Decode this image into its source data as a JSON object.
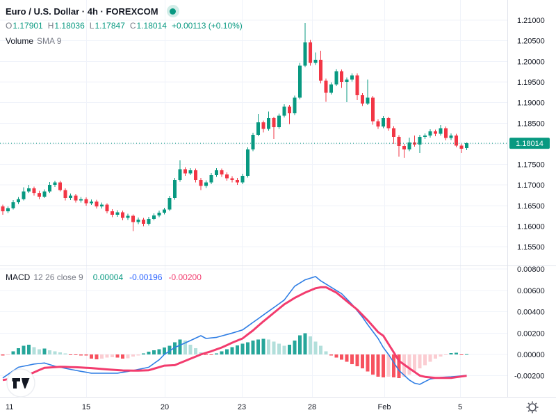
{
  "title": {
    "display": "Euro / U.S. Dollar · 4h · FOREXCOM",
    "symbol": "Euro / U.S. Dollar",
    "interval": "4h",
    "exchange": "FOREXCOM"
  },
  "ohlc_row": {
    "o_label": "O",
    "o_value": "1.17901",
    "h_label": "H",
    "h_value": "1.18036",
    "l_label": "L",
    "l_value": "1.17847",
    "c_label": "C",
    "c_value": "1.18014",
    "change": "+0.00113 (+0.10%)"
  },
  "volume_row": {
    "label": "Volume",
    "ma_label": "SMA 9"
  },
  "macd_row": {
    "label": "MACD",
    "params": "12 26 close 9",
    "hist_value": "0.00004",
    "macd_value": "-0.00196",
    "signal_value": "-0.00200"
  },
  "price_axis": {
    "ticks": [
      "1.21000",
      "1.20500",
      "1.20000",
      "1.19500",
      "1.19000",
      "1.18500",
      "1.17500",
      "1.17000",
      "1.16500",
      "1.16000",
      "1.15500"
    ],
    "last_price": "1.18014"
  },
  "macd_axis": {
    "ticks": [
      "0.00800",
      "0.00600",
      "0.00400",
      "0.00200",
      "0.00000",
      "-0.00200"
    ]
  },
  "time_axis": {
    "labels": [
      "11",
      "15",
      "20",
      "23",
      "28",
      "Feb",
      "5"
    ]
  },
  "colors": {
    "up": "#089981",
    "down": "#f23645",
    "accent": "#089981",
    "macd_line": "#2e7de4",
    "signal_line": "#f23c6e",
    "hist_grow_above": "#26a69a",
    "hist_fall_above": "#b2dfdb",
    "hist_fall_below": "#f7525f",
    "hist_grow_below": "#fbcdd2",
    "text_dark": "#131722",
    "text_gray": "#787b86",
    "grid": "#f0f3fa",
    "separator": "#e0e3eb"
  },
  "chart_data": {
    "type": "candlestick",
    "title": "Euro / U.S. Dollar 4h FOREXCOM",
    "price_axis_range": [
      1.1508,
      1.2149
    ],
    "price_tick_step": 0.005,
    "last_price": 1.18014,
    "candles_ohlc": [
      [
        1.1648,
        1.1652,
        1.1628,
        1.1636
      ],
      [
        1.1636,
        1.1648,
        1.1632,
        1.1644
      ],
      [
        1.1644,
        1.1663,
        1.164,
        1.1658
      ],
      [
        1.1658,
        1.1671,
        1.1654,
        1.1666
      ],
      [
        1.1666,
        1.1694,
        1.1662,
        1.1684
      ],
      [
        1.1684,
        1.17,
        1.168,
        1.1692
      ],
      [
        1.1692,
        1.1696,
        1.1674,
        1.168
      ],
      [
        1.168,
        1.1686,
        1.1666,
        1.1672
      ],
      [
        1.1672,
        1.1689,
        1.1668,
        1.1684
      ],
      [
        1.1684,
        1.1707,
        1.168,
        1.17
      ],
      [
        1.17,
        1.171,
        1.1695,
        1.1706
      ],
      [
        1.1706,
        1.171,
        1.1684,
        1.1688
      ],
      [
        1.1688,
        1.1692,
        1.1662,
        1.1668
      ],
      [
        1.1668,
        1.1679,
        1.1663,
        1.1674
      ],
      [
        1.1674,
        1.1678,
        1.1657,
        1.1662
      ],
      [
        1.1662,
        1.1671,
        1.1657,
        1.1666
      ],
      [
        1.1666,
        1.167,
        1.165,
        1.1656
      ],
      [
        1.1656,
        1.1665,
        1.1651,
        1.166
      ],
      [
        1.166,
        1.1664,
        1.1643,
        1.1648
      ],
      [
        1.1648,
        1.1657,
        1.1643,
        1.1652
      ],
      [
        1.1652,
        1.1656,
        1.1631,
        1.1636
      ],
      [
        1.1636,
        1.1641,
        1.1622,
        1.1628
      ],
      [
        1.1628,
        1.1639,
        1.1623,
        1.1634
      ],
      [
        1.1634,
        1.1638,
        1.1614,
        1.162
      ],
      [
        1.162,
        1.163,
        1.1615,
        1.1625
      ],
      [
        1.1625,
        1.1629,
        1.1588,
        1.161
      ],
      [
        1.161,
        1.1621,
        1.1605,
        1.1616
      ],
      [
        1.1616,
        1.162,
        1.16,
        1.1606
      ],
      [
        1.1606,
        1.1623,
        1.1602,
        1.1618
      ],
      [
        1.1618,
        1.1631,
        1.1614,
        1.1626
      ],
      [
        1.1626,
        1.1638,
        1.1622,
        1.1633
      ],
      [
        1.1633,
        1.1645,
        1.1629,
        1.164
      ],
      [
        1.164,
        1.1673,
        1.1637,
        1.1668
      ],
      [
        1.1668,
        1.1717,
        1.1664,
        1.1712
      ],
      [
        1.1712,
        1.176,
        1.1708,
        1.1738
      ],
      [
        1.1738,
        1.1743,
        1.1722,
        1.1728
      ],
      [
        1.1728,
        1.1741,
        1.1724,
        1.1736
      ],
      [
        1.1736,
        1.174,
        1.1706,
        1.1712
      ],
      [
        1.1712,
        1.1717,
        1.1688,
        1.1698
      ],
      [
        1.1698,
        1.1711,
        1.1693,
        1.1706
      ],
      [
        1.1706,
        1.1729,
        1.1702,
        1.1724
      ],
      [
        1.1724,
        1.1741,
        1.172,
        1.1736
      ],
      [
        1.1736,
        1.174,
        1.172,
        1.1726
      ],
      [
        1.1726,
        1.1731,
        1.171,
        1.1716
      ],
      [
        1.1716,
        1.1721,
        1.1706,
        1.1712
      ],
      [
        1.1712,
        1.1717,
        1.17,
        1.1706
      ],
      [
        1.1706,
        1.1727,
        1.1702,
        1.1722
      ],
      [
        1.1722,
        1.1791,
        1.1718,
        1.1786
      ],
      [
        1.1786,
        1.1827,
        1.1782,
        1.1822
      ],
      [
        1.1822,
        1.1872,
        1.1818,
        1.1852
      ],
      [
        1.1852,
        1.1856,
        1.1828,
        1.1836
      ],
      [
        1.1836,
        1.1878,
        1.1832,
        1.1862
      ],
      [
        1.1862,
        1.1866,
        1.1812,
        1.184
      ],
      [
        1.184,
        1.1873,
        1.1836,
        1.1868
      ],
      [
        1.1868,
        1.1896,
        1.1864,
        1.189
      ],
      [
        1.189,
        1.1894,
        1.1848,
        1.1874
      ],
      [
        1.1874,
        1.1917,
        1.187,
        1.1912
      ],
      [
        1.1912,
        1.1996,
        1.1908,
        1.199
      ],
      [
        1.199,
        1.2093,
        1.1986,
        1.2046
      ],
      [
        1.2046,
        1.2052,
        1.199,
        1.1996
      ],
      [
        1.1996,
        1.2022,
        1.1991,
        1.2004
      ],
      [
        1.2004,
        1.2026,
        1.1947,
        1.1953
      ],
      [
        1.1953,
        1.1958,
        1.1902,
        1.1924
      ],
      [
        1.1924,
        1.1949,
        1.192,
        1.1944
      ],
      [
        1.1944,
        1.1981,
        1.194,
        1.1976
      ],
      [
        1.1976,
        1.198,
        1.1936,
        1.195
      ],
      [
        1.195,
        1.1961,
        1.1901,
        1.1956
      ],
      [
        1.1956,
        1.1971,
        1.1951,
        1.1966
      ],
      [
        1.1966,
        1.1971,
        1.1906,
        1.1918
      ],
      [
        1.1918,
        1.1923,
        1.1892,
        1.1898
      ],
      [
        1.1898,
        1.1956,
        1.1894,
        1.1912
      ],
      [
        1.1912,
        1.1916,
        1.1846,
        1.1855
      ],
      [
        1.1855,
        1.186,
        1.1836,
        1.1842
      ],
      [
        1.1842,
        1.1867,
        1.1838,
        1.1862
      ],
      [
        1.1862,
        1.1866,
        1.1832,
        1.1838
      ],
      [
        1.1838,
        1.1843,
        1.18,
        1.1817
      ],
      [
        1.1817,
        1.1821,
        1.1769,
        1.1795
      ],
      [
        1.1795,
        1.18,
        1.1766,
        1.1786
      ],
      [
        1.1786,
        1.1815,
        1.1782,
        1.1803
      ],
      [
        1.1803,
        1.182,
        1.1793,
        1.1798
      ],
      [
        1.1798,
        1.1822,
        1.1778,
        1.1817
      ],
      [
        1.1817,
        1.1825,
        1.1812,
        1.182
      ],
      [
        1.182,
        1.1835,
        1.1815,
        1.183
      ],
      [
        1.183,
        1.1834,
        1.1818,
        1.1824
      ],
      [
        1.1824,
        1.1845,
        1.182,
        1.1838
      ],
      [
        1.1838,
        1.1842,
        1.1808,
        1.1814
      ],
      [
        1.1814,
        1.1825,
        1.1809,
        1.182
      ],
      [
        1.182,
        1.1824,
        1.1791,
        1.1796
      ],
      [
        1.1796,
        1.18,
        1.1778,
        1.1788
      ],
      [
        1.17901,
        1.18036,
        1.17847,
        1.18014
      ]
    ],
    "indicators": {
      "macd_12_26_close_9": {
        "value_axis_range": [
          -0.0039,
          0.00814
        ],
        "histogram": [
          -0.0001,
          -5e-05,
          0.0003,
          0.0006,
          0.0008,
          0.0009,
          0.0007,
          0.0005,
          0.00055,
          0.0004,
          0.0003,
          0.0002,
          0.0001,
          -5e-05,
          -8e-05,
          -0.0001,
          -0.0001,
          -0.0004,
          -0.00045,
          -0.0004,
          -0.0003,
          -0.00025,
          -0.0003,
          -0.0004,
          -0.00035,
          -0.0002,
          -0.0001,
          0.0001,
          0.00025,
          0.0004,
          0.0005,
          0.00065,
          0.0008,
          0.00115,
          0.0014,
          0.0013,
          0.0009,
          0.0006,
          0.0002,
          -5e-05,
          -8e-05,
          0.0001,
          0.0003,
          0.0005,
          0.0007,
          0.00085,
          0.001,
          0.00115,
          0.0013,
          0.0014,
          0.00145,
          0.0014,
          0.0012,
          0.001,
          0.0008,
          0.0009,
          0.0013,
          0.0018,
          0.002,
          0.0017,
          0.0012,
          0.0008,
          0.0003,
          -0.0001,
          -0.0003,
          -0.0005,
          -0.0007,
          -0.0009,
          -0.0011,
          -0.0013,
          -0.0016,
          -0.0019,
          -0.0021,
          -0.00215,
          -0.0021,
          -0.00215,
          -0.0022,
          -0.0021,
          -0.0019,
          -0.0016,
          -0.0013,
          -0.001,
          -0.0007,
          -0.0004,
          -0.0002,
          -8e-05,
          0.00012,
          0.00015,
          -5e-05,
          4e-05
        ],
        "macd_line_points": [
          [
            0,
            -0.0022
          ],
          [
            3,
            -0.0012
          ],
          [
            6,
            -0.0009
          ],
          [
            8,
            -0.0008
          ],
          [
            10,
            -0.0011
          ],
          [
            13,
            -0.0014
          ],
          [
            17,
            -0.00176
          ],
          [
            22,
            -0.00176
          ],
          [
            25,
            -0.0015
          ],
          [
            28,
            -0.0012
          ],
          [
            30,
            -0.0005
          ],
          [
            31,
            0
          ],
          [
            33,
            0.00065
          ],
          [
            36,
            0.0013
          ],
          [
            38,
            0.00176
          ],
          [
            39,
            0.0015
          ],
          [
            41,
            0.0016
          ],
          [
            44,
            0.002
          ],
          [
            46,
            0.0023
          ],
          [
            48,
            0.003
          ],
          [
            50,
            0.0037
          ],
          [
            52,
            0.0044
          ],
          [
            54,
            0.0051
          ],
          [
            56,
            0.0064
          ],
          [
            58,
            0.007
          ],
          [
            60,
            0.0073
          ],
          [
            61,
            0.0069
          ],
          [
            63,
            0.0063
          ],
          [
            65,
            0.0057
          ],
          [
            67,
            0.0047
          ],
          [
            69,
            0.0035
          ],
          [
            70,
            0.0028
          ],
          [
            72,
            0.0015
          ],
          [
            73,
            0.00065
          ],
          [
            74,
            0
          ],
          [
            76,
            -0.0015
          ],
          [
            78,
            -0.0024
          ],
          [
            79,
            -0.0027
          ],
          [
            80,
            -0.0028
          ],
          [
            82,
            -0.0023
          ],
          [
            84,
            -0.00215
          ],
          [
            86,
            -0.0021
          ],
          [
            89,
            -0.00196
          ]
        ],
        "signal_line_points": [
          [
            0,
            -0.0024
          ],
          [
            4,
            -0.0021
          ],
          [
            8,
            -0.00125
          ],
          [
            11,
            -0.00115
          ],
          [
            14,
            -0.0012
          ],
          [
            17,
            -0.00128
          ],
          [
            20,
            -0.0014
          ],
          [
            23,
            -0.0015
          ],
          [
            26,
            -0.00152
          ],
          [
            28,
            -0.00148
          ],
          [
            31,
            -0.00105
          ],
          [
            33,
            -0.001
          ],
          [
            35,
            -0.0006
          ],
          [
            37,
            -0.0002
          ],
          [
            38,
            0
          ],
          [
            40,
            0.0003
          ],
          [
            42,
            0.00065
          ],
          [
            44,
            0.0011
          ],
          [
            46,
            0.0015
          ],
          [
            48,
            0.00225
          ],
          [
            50,
            0.0031
          ],
          [
            52,
            0.0039
          ],
          [
            54,
            0.0047
          ],
          [
            56,
            0.0053
          ],
          [
            58,
            0.0058
          ],
          [
            60,
            0.0062
          ],
          [
            61,
            0.0063
          ],
          [
            62,
            0.0063
          ],
          [
            64,
            0.0058
          ],
          [
            66,
            0.005
          ],
          [
            68,
            0.0042
          ],
          [
            70,
            0.0032
          ],
          [
            72,
            0.0021
          ],
          [
            73,
            0.00175
          ],
          [
            75,
            0.0002
          ],
          [
            76,
            -0.0006
          ],
          [
            78,
            -0.0013
          ],
          [
            80,
            -0.00198
          ],
          [
            81,
            -0.0021
          ],
          [
            83,
            -0.0022
          ],
          [
            86,
            -0.0022
          ],
          [
            89,
            -0.002
          ]
        ],
        "last_values": {
          "histogram": 4e-05,
          "macd": -0.00196,
          "signal": -0.002
        }
      }
    }
  }
}
